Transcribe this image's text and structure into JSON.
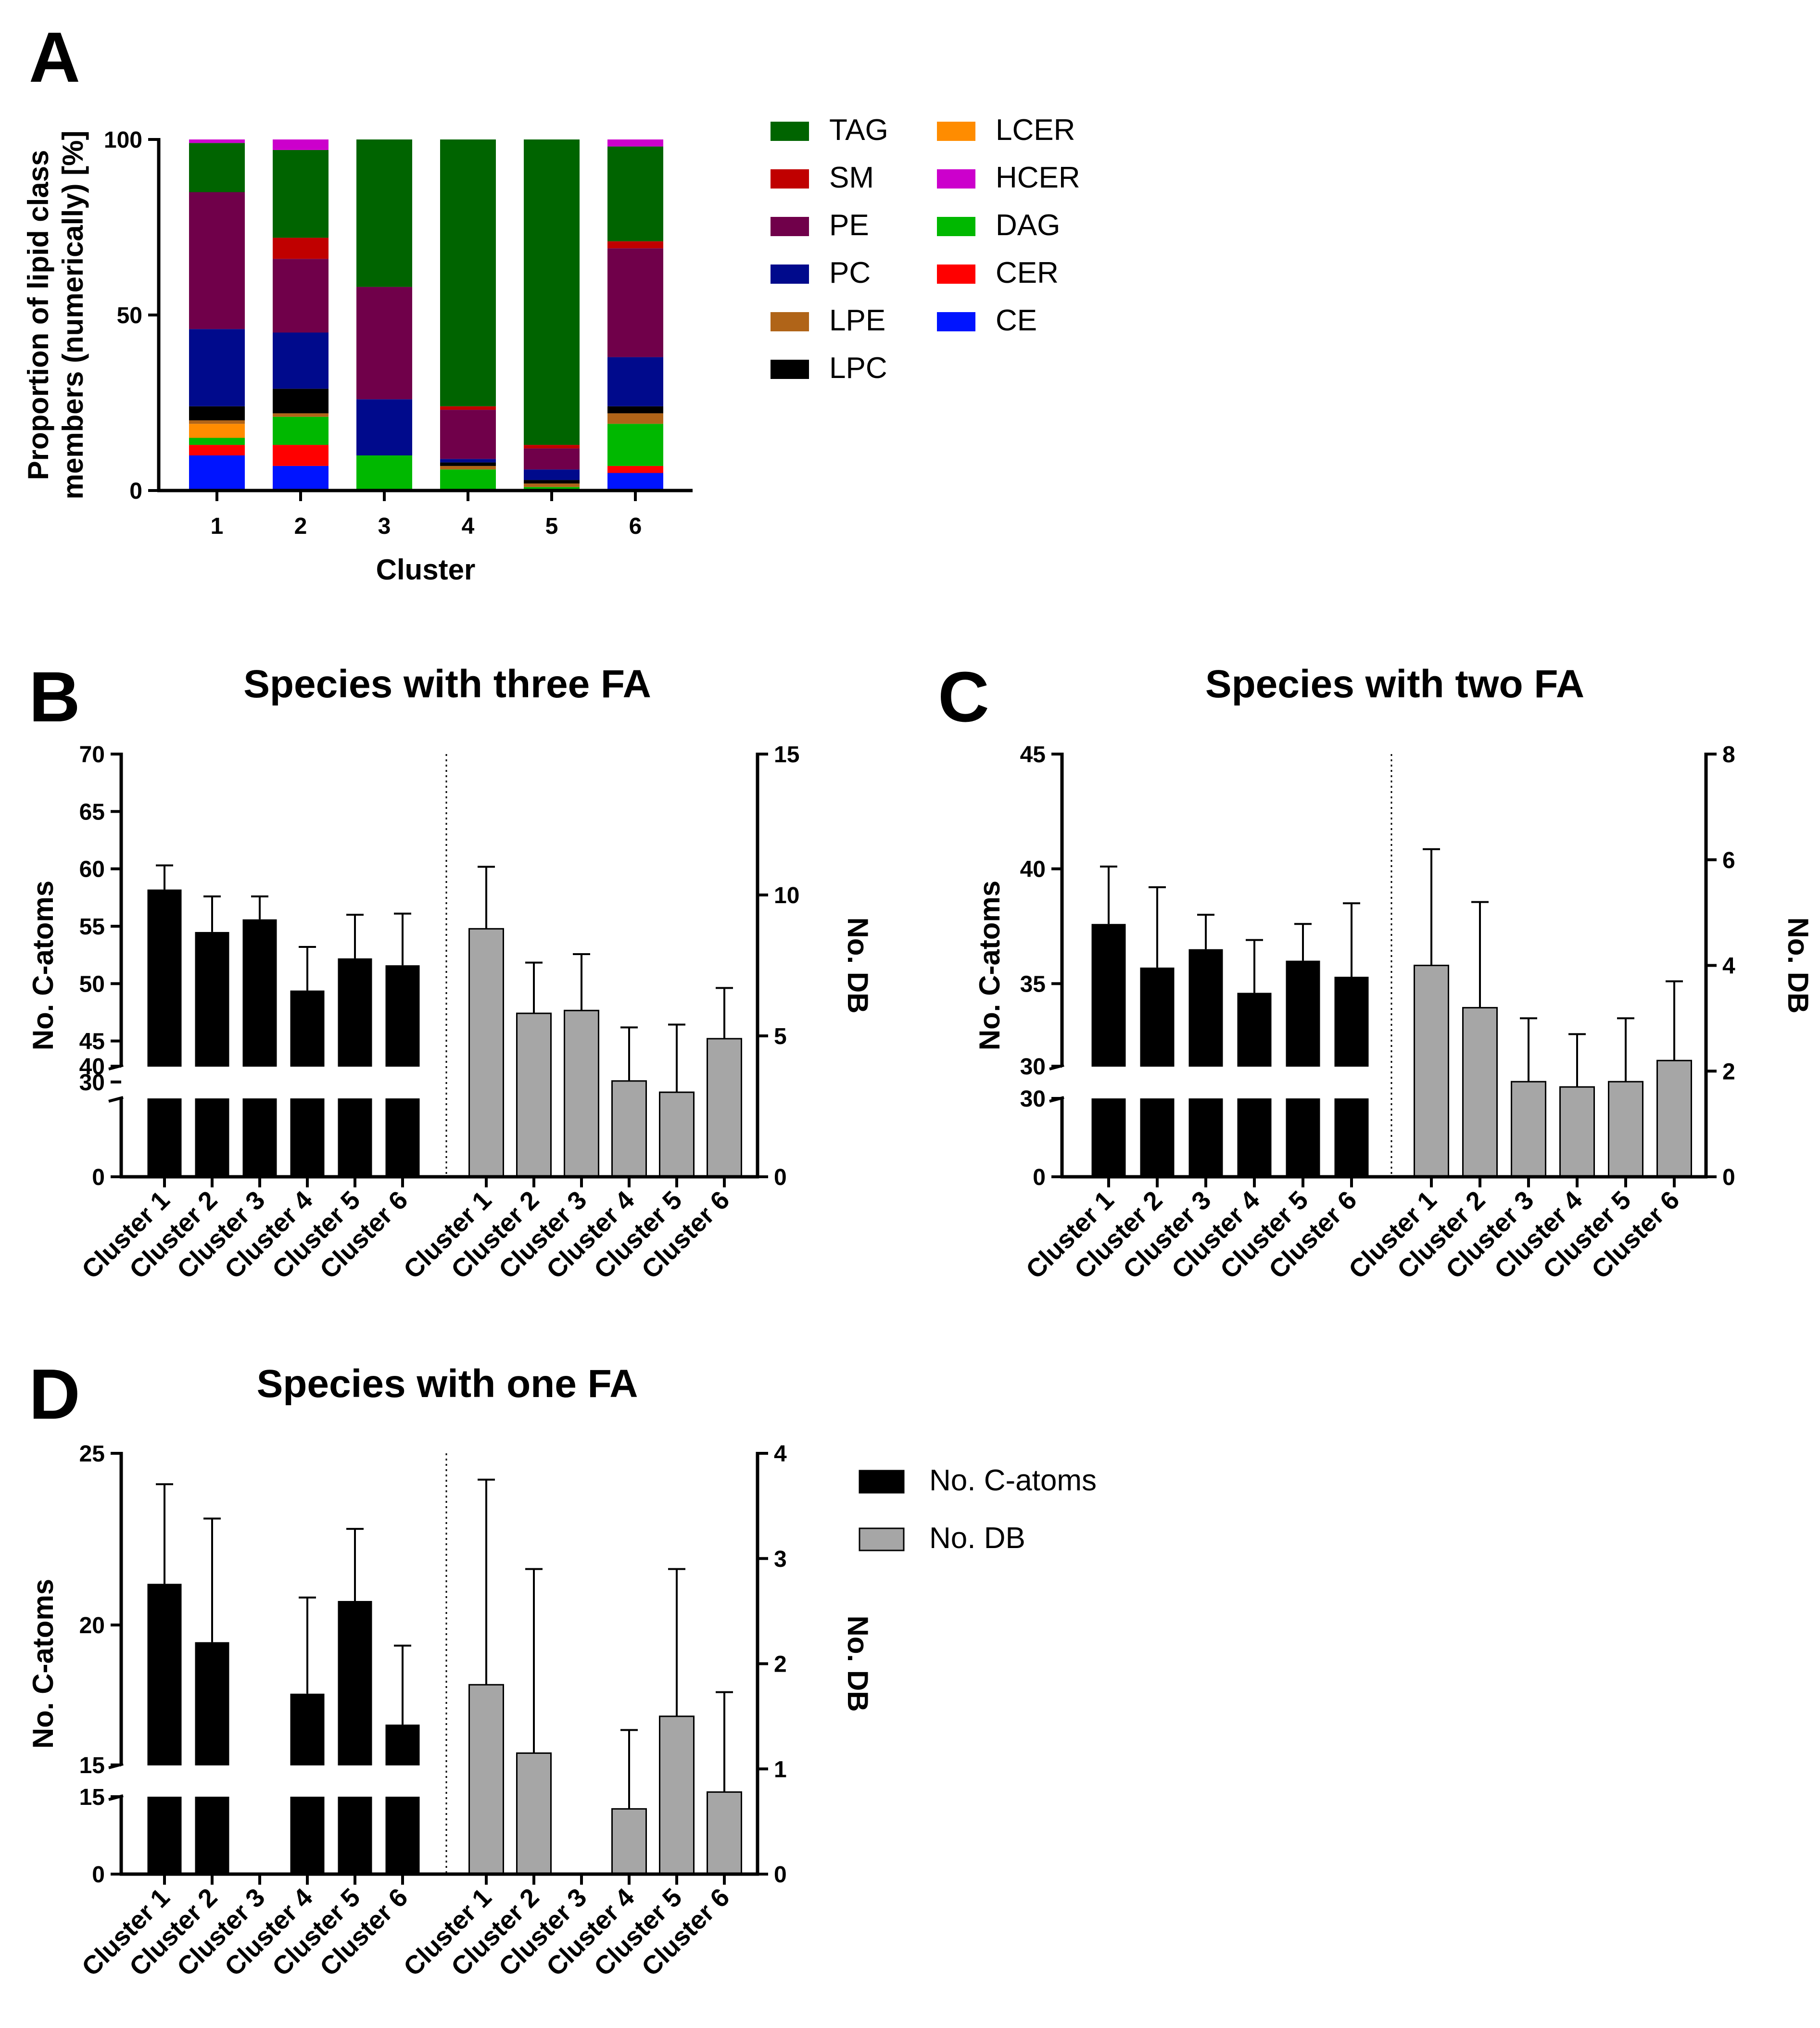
{
  "panels": {
    "A": {
      "letter": "A"
    },
    "B": {
      "letter": "B"
    },
    "C": {
      "letter": "C"
    },
    "D": {
      "letter": "D"
    }
  },
  "colors": {
    "TAG": "#006400",
    "SM": "#c00000",
    "PE": "#70004a",
    "PC": "#000a8c",
    "LPE": "#b06418",
    "LPC": "#000000",
    "LCER": "#ff8c00",
    "HCER": "#cc00cc",
    "DAG": "#00b800",
    "CER": "#ff0000",
    "CE": "#0014ff",
    "catoms": "#000000",
    "db": "#a6a6a6"
  },
  "chart_data": [
    {
      "id": "A",
      "type": "bar",
      "stacked": true,
      "xlabel": "Cluster",
      "ylabel": "Proportion of lipid class members (numerically) [%]",
      "ylabel_lines": [
        "Proportion of lipid class",
        "members (numerically) [%]"
      ],
      "ylim": [
        0,
        100
      ],
      "yticks": [
        0,
        50,
        100
      ],
      "categories": [
        "1",
        "2",
        "3",
        "4",
        "5",
        "6"
      ],
      "legend_position": "right",
      "legend_order": [
        "TAG",
        "SM",
        "PE",
        "PC",
        "LPE",
        "LPC",
        "LCER",
        "HCER",
        "DAG",
        "CER",
        "CE"
      ],
      "stack_order": [
        "CE",
        "CER",
        "DAG",
        "LCER",
        "LPE",
        "LPC",
        "PC",
        "PE",
        "SM",
        "TAG",
        "HCER"
      ],
      "series": [
        {
          "name": "CE",
          "values": [
            10,
            7,
            0,
            0,
            0,
            5
          ]
        },
        {
          "name": "CER",
          "values": [
            3,
            6,
            0,
            0,
            0,
            2
          ]
        },
        {
          "name": "DAG",
          "values": [
            2,
            8,
            10,
            6,
            1,
            12
          ]
        },
        {
          "name": "LCER",
          "values": [
            4,
            0,
            0,
            0,
            0,
            0
          ]
        },
        {
          "name": "LPE",
          "values": [
            1,
            1,
            0,
            1,
            1,
            3
          ]
        },
        {
          "name": "LPC",
          "values": [
            4,
            7,
            0,
            1,
            1,
            2
          ]
        },
        {
          "name": "PC",
          "values": [
            22,
            16,
            16,
            1,
            3,
            14
          ]
        },
        {
          "name": "PE",
          "values": [
            39,
            21,
            32,
            14,
            6,
            31
          ]
        },
        {
          "name": "SM",
          "values": [
            0,
            6,
            0,
            1,
            1,
            2
          ]
        },
        {
          "name": "TAG",
          "values": [
            14,
            25,
            42,
            76,
            87,
            27
          ]
        },
        {
          "name": "HCER",
          "values": [
            1,
            3,
            0,
            0,
            0,
            2
          ]
        }
      ]
    },
    {
      "id": "B",
      "type": "bar",
      "title": "Species with three FA",
      "ylabel": "No. C-atoms",
      "y2label": "No. DB",
      "categories": [
        "Cluster 1",
        "Cluster 2",
        "Cluster 3",
        "Cluster 4",
        "Cluster 5",
        "Cluster 6"
      ],
      "y_segments": [
        [
          0,
          35
        ],
        [
          40,
          70
        ]
      ],
      "yticks_lower": [
        0,
        30
      ],
      "yticks_upper": [
        40,
        45,
        50,
        55,
        60,
        65,
        70
      ],
      "y2lim": [
        0,
        15
      ],
      "y2ticks": [
        0,
        5,
        10,
        15
      ],
      "series": [
        {
          "name": "No. C-atoms",
          "axis": "left",
          "values": [
            58.2,
            54.5,
            55.6,
            49.4,
            52.2,
            51.6
          ],
          "errors": [
            2.1,
            3.1,
            2.0,
            3.8,
            3.8,
            4.5
          ]
        },
        {
          "name": "No. DB",
          "axis": "right",
          "values": [
            8.8,
            5.8,
            5.9,
            3.4,
            3.0,
            4.9
          ],
          "errors": [
            2.2,
            1.8,
            2.0,
            1.9,
            2.4,
            1.8
          ]
        }
      ]
    },
    {
      "id": "C",
      "type": "bar",
      "title": "Species with two FA",
      "ylabel": "No. C-atoms",
      "y2label": "No. DB",
      "categories": [
        "Cluster 1",
        "Cluster 2",
        "Cluster 3",
        "Cluster 4",
        "Cluster 5",
        "Cluster 6"
      ],
      "y_segments": [
        [
          0,
          30
        ],
        [
          30,
          45
        ]
      ],
      "yticks_lower": [
        0,
        30
      ],
      "yticks_upper": [
        30,
        35,
        40,
        45
      ],
      "y2lim": [
        0,
        8
      ],
      "y2ticks": [
        0,
        2,
        4,
        6,
        8
      ],
      "series": [
        {
          "name": "No. C-atoms",
          "axis": "left",
          "values": [
            37.6,
            35.7,
            36.5,
            34.6,
            36.0,
            35.3
          ],
          "errors": [
            2.5,
            3.5,
            1.5,
            2.3,
            1.6,
            3.2
          ]
        },
        {
          "name": "No. DB",
          "axis": "right",
          "values": [
            4.0,
            3.2,
            1.8,
            1.7,
            1.8,
            2.2
          ],
          "errors": [
            2.2,
            2.0,
            1.2,
            1.0,
            1.2,
            1.5
          ]
        }
      ]
    },
    {
      "id": "D",
      "type": "bar",
      "title": "Species with one FA",
      "ylabel": "No. C-atoms",
      "y2label": "No. DB",
      "categories": [
        "Cluster 1",
        "Cluster 2",
        "Cluster 3",
        "Cluster 4",
        "Cluster 5",
        "Cluster 6"
      ],
      "y_segments": [
        [
          0,
          15
        ],
        [
          15,
          25
        ]
      ],
      "yticks_lower": [
        0,
        15
      ],
      "yticks_upper": [
        15,
        20,
        25
      ],
      "y2lim": [
        0,
        4
      ],
      "y2ticks": [
        0,
        1,
        2,
        3,
        4
      ],
      "legend_position": "right",
      "series": [
        {
          "name": "No. C-atoms",
          "axis": "left",
          "values": [
            21.2,
            19.5,
            null,
            18.0,
            20.7,
            17.1
          ],
          "errors": [
            2.9,
            3.6,
            null,
            2.8,
            2.1,
            2.3
          ]
        },
        {
          "name": "No. DB",
          "axis": "right",
          "values": [
            1.8,
            1.15,
            null,
            0.62,
            1.5,
            0.78
          ],
          "errors": [
            1.95,
            1.75,
            null,
            0.75,
            1.4,
            0.95
          ]
        }
      ]
    }
  ]
}
